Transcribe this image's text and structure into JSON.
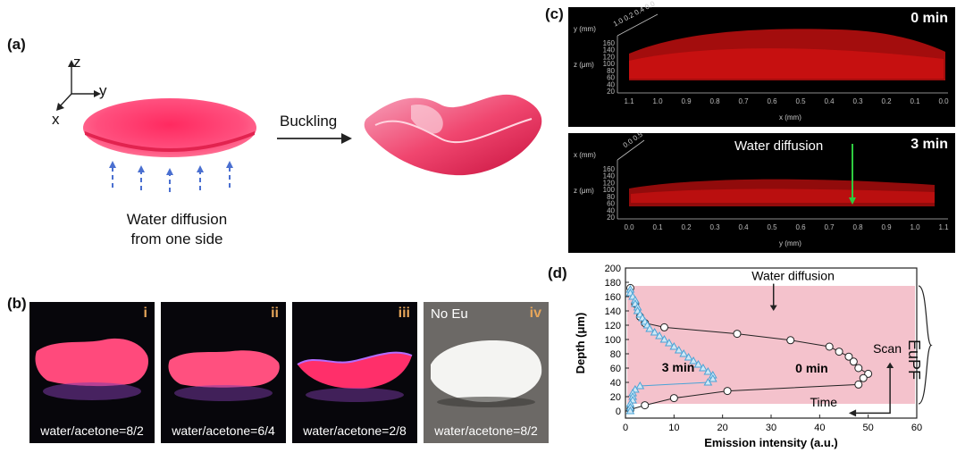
{
  "panel_a": {
    "label": "(a)",
    "axes": {
      "z": "z",
      "y": "y",
      "x": "x"
    },
    "arrow_label": "Buckling",
    "caption_line1": "Water diffusion",
    "caption_line2": "from one side",
    "colors": {
      "film": "#ff2f6a",
      "arrow": "#4a6fd0"
    }
  },
  "panel_b": {
    "label": "(b)",
    "photos": [
      {
        "roman": "i",
        "caption": "water/acetone=8/2"
      },
      {
        "roman": "ii",
        "caption": "water/acetone=6/4"
      },
      {
        "roman": "iii",
        "caption": "water/acetone=2/8"
      },
      {
        "roman": "iv",
        "caption": "water/acetone=8/2",
        "note": "No Eu"
      }
    ]
  },
  "panel_c": {
    "label": "(c)",
    "top": {
      "time": "0 min",
      "y_axis": "y (mm)",
      "y_ticks": [
        "1.0",
        "0.2",
        "0.4",
        "0.0"
      ],
      "z_axis": "z (μm)",
      "z_ticks": [
        "160",
        "140",
        "120",
        "100",
        "80",
        "60",
        "40",
        "20"
      ],
      "x_axis": "x (mm)",
      "x_ticks": [
        "1.1",
        "1.0",
        "0.9",
        "0.8",
        "0.7",
        "0.6",
        "0.5",
        "0.4",
        "0.3",
        "0.2",
        "0.1",
        "0.0"
      ]
    },
    "bottom": {
      "time": "3 min",
      "annotation": "Water diffusion",
      "x_axis": "x (mm)",
      "x_ticks": [
        "0.0",
        "0.5"
      ],
      "z_axis": "z (μm)",
      "z_ticks": [
        "160",
        "140",
        "120",
        "100",
        "80",
        "60",
        "40",
        "20"
      ],
      "y_axis": "y (mm)",
      "y_ticks": [
        "0.0",
        "0.1",
        "0.2",
        "0.3",
        "0.4",
        "0.5",
        "0.6",
        "0.7",
        "0.8",
        "0.9",
        "1.0",
        "1.1"
      ]
    }
  },
  "panel_d": {
    "label": "(d)",
    "brace_label": "EuPF",
    "annotations": {
      "water_diffusion": "Water diffusion",
      "scan": "Scan",
      "time": "Time",
      "three_min": "3 min",
      "zero_min": "0 min"
    },
    "colors": {
      "band": "#f4c2cc",
      "zero_min": "#222222",
      "three_min": "#4aa3d6"
    }
  },
  "chart_data": {
    "type": "scatter",
    "xlabel": "Emission intensity (a.u.)",
    "ylabel": "Depth (μm)",
    "xlim": [
      0,
      60
    ],
    "ylim": [
      -10,
      200
    ],
    "x_ticks": [
      0,
      10,
      20,
      30,
      40,
      50,
      60
    ],
    "y_ticks": [
      0,
      20,
      40,
      60,
      80,
      100,
      120,
      140,
      160,
      180,
      200
    ],
    "band": [
      10,
      175
    ],
    "series": [
      {
        "name": "0 min",
        "marker": "open-circle",
        "points": [
          [
            1,
            172
          ],
          [
            2,
            150
          ],
          [
            3,
            132
          ],
          [
            4,
            123
          ],
          [
            8,
            117
          ],
          [
            23,
            108
          ],
          [
            34,
            99
          ],
          [
            42,
            90
          ],
          [
            44,
            83
          ],
          [
            46,
            76
          ],
          [
            47,
            69
          ],
          [
            48,
            60
          ],
          [
            50,
            52
          ],
          [
            49,
            46
          ],
          [
            48,
            37
          ],
          [
            21,
            28
          ],
          [
            10,
            18
          ],
          [
            4,
            8
          ],
          [
            1,
            2
          ]
        ]
      },
      {
        "name": "3 min",
        "marker": "open-triangle",
        "points": [
          [
            1,
            170
          ],
          [
            1,
            165
          ],
          [
            1.5,
            160
          ],
          [
            2,
            155
          ],
          [
            2,
            150
          ],
          [
            2.5,
            145
          ],
          [
            2.5,
            140
          ],
          [
            3,
            135
          ],
          [
            3.5,
            130
          ],
          [
            4,
            125
          ],
          [
            4.5,
            120
          ],
          [
            5,
            115
          ],
          [
            6,
            110
          ],
          [
            7,
            105
          ],
          [
            8,
            100
          ],
          [
            9,
            95
          ],
          [
            10,
            90
          ],
          [
            11,
            85
          ],
          [
            12,
            80
          ],
          [
            13,
            75
          ],
          [
            14,
            70
          ],
          [
            15,
            65
          ],
          [
            16,
            60
          ],
          [
            17,
            55
          ],
          [
            18,
            50
          ],
          [
            18,
            45
          ],
          [
            17,
            40
          ],
          [
            3,
            35
          ],
          [
            2,
            30
          ],
          [
            1.5,
            25
          ],
          [
            1.5,
            20
          ],
          [
            1.5,
            15
          ],
          [
            1,
            10
          ],
          [
            1,
            5
          ],
          [
            1,
            0
          ]
        ]
      }
    ]
  }
}
